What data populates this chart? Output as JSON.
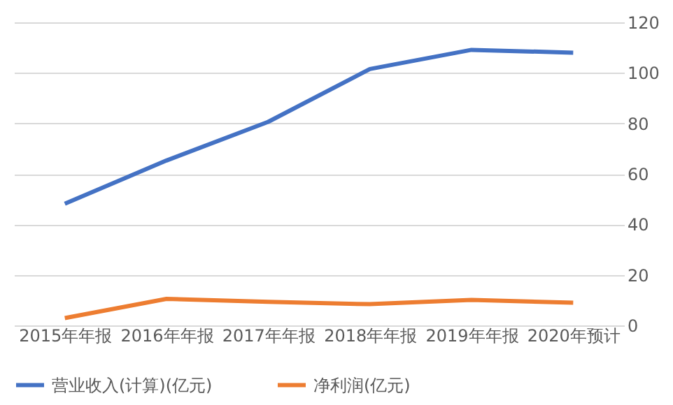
{
  "chart_data": {
    "type": "line",
    "categories": [
      "2015年年报",
      "2016年年报",
      "2017年年报",
      "2018年年报",
      "2019年年报",
      "2020年预计"
    ],
    "series": [
      {
        "name": "营业收入(计算)(亿元)",
        "color": "#4472c4",
        "values": [
          48.2,
          65.3,
          80.6,
          101.5,
          109.1,
          108.0
        ]
      },
      {
        "name": "净利润(亿元)",
        "color": "#ed7d31",
        "values": [
          2.9,
          10.5,
          9.3,
          8.4,
          10.1,
          9.0
        ]
      }
    ],
    "ylim": [
      0,
      120
    ],
    "yticks": [
      0,
      20,
      40,
      60,
      80,
      100,
      120
    ],
    "grid": "y",
    "legend": "bottom",
    "marker": "none",
    "line_style": "solid"
  }
}
